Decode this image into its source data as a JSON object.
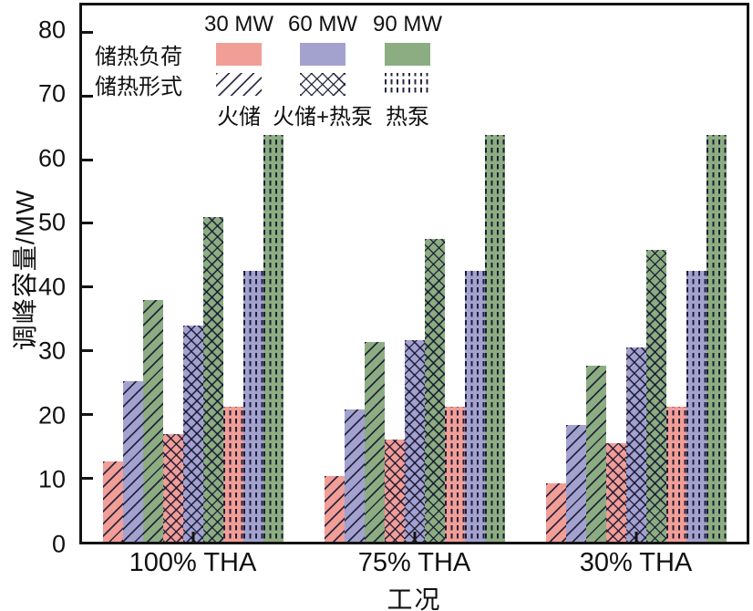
{
  "chart_data": {
    "type": "bar",
    "title": "",
    "xlabel": "工况",
    "ylabel": "调峰容量/MW",
    "ylim": [
      0,
      84.2
    ],
    "yticks": [
      0,
      10,
      20,
      30,
      40,
      50,
      60,
      70,
      80
    ],
    "grid": false,
    "legend_position": "top-left-inside",
    "categories": [
      "100% THA",
      "75% THA",
      "30% THA"
    ],
    "color_legend": {
      "title": "储热负荷",
      "entries": [
        {
          "label": "30 MW",
          "color": "#F19E97"
        },
        {
          "label": "60 MW",
          "color": "#A3A2CF"
        },
        {
          "label": "90 MW",
          "color": "#8CAD81"
        }
      ]
    },
    "pattern_legend": {
      "title": "储热形式",
      "entries": [
        {
          "label": "火储",
          "pattern": "diagonal"
        },
        {
          "label": "火储+热泵",
          "pattern": "crosshatch"
        },
        {
          "label": "热泵",
          "pattern": "vertical-dashes"
        }
      ]
    },
    "series": [
      {
        "form": "火储",
        "mw": "30 MW",
        "values": [
          12.6,
          10.3,
          9.2
        ]
      },
      {
        "form": "火储",
        "mw": "60 MW",
        "values": [
          25.2,
          20.8,
          18.3
        ]
      },
      {
        "form": "火储",
        "mw": "90 MW",
        "values": [
          37.9,
          31.4,
          27.6
        ]
      },
      {
        "form": "火储+热泵",
        "mw": "30 MW",
        "values": [
          16.9,
          16.0,
          15.4
        ]
      },
      {
        "form": "火储+热泵",
        "mw": "60 MW",
        "values": [
          33.9,
          31.7,
          30.5
        ]
      },
      {
        "form": "火储+热泵",
        "mw": "90 MW",
        "values": [
          51.0,
          47.6,
          45.8
        ]
      },
      {
        "form": "热泵",
        "mw": "30 MW",
        "values": [
          21.2,
          21.2,
          21.2
        ]
      },
      {
        "form": "热泵",
        "mw": "60 MW",
        "values": [
          42.5,
          42.5,
          42.5
        ]
      },
      {
        "form": "热泵",
        "mw": "90 MW",
        "values": [
          63.9,
          63.9,
          63.9
        ]
      }
    ]
  }
}
